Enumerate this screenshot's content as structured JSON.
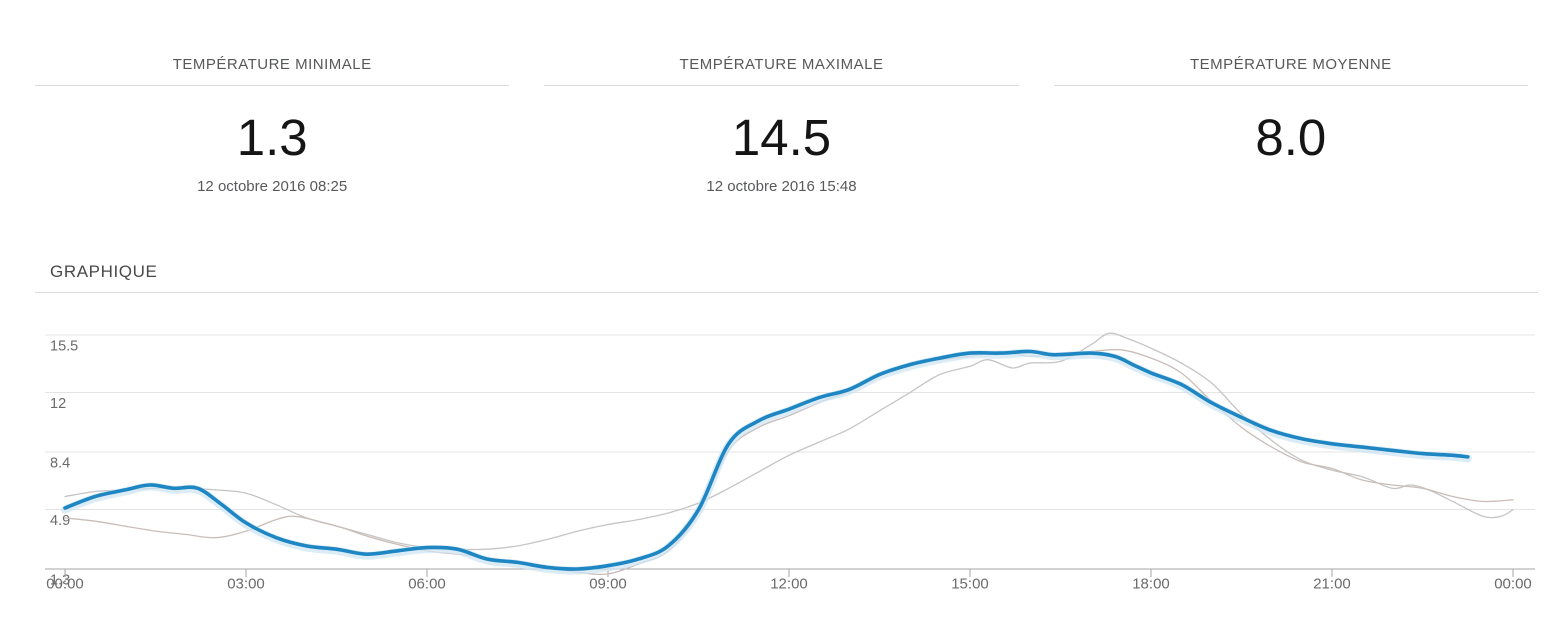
{
  "stats": {
    "cards": [
      {
        "label": "TEMPÉRATURE MINIMALE",
        "value": "1.3",
        "datetime": "12 octobre 2016 08:25"
      },
      {
        "label": "TEMPÉRATURE MAXIMALE",
        "value": "14.5",
        "datetime": "12 octobre 2016 15:48"
      },
      {
        "label": "TEMPÉRATURE MOYENNE",
        "value": "8.0",
        "datetime": ""
      }
    ]
  },
  "section": {
    "title": "GRAPHIQUE"
  },
  "chart_data": {
    "type": "line",
    "title": "GRAPHIQUE",
    "xlabel": "",
    "ylabel": "",
    "xlim_hours": [
      0,
      24
    ],
    "ylim": [
      1.3,
      15.5
    ],
    "grid": true,
    "legend": "none",
    "x_ticks": [
      "00:00",
      "03:00",
      "06:00",
      "09:00",
      "12:00",
      "15:00",
      "18:00",
      "21:00",
      "00:00"
    ],
    "y_ticks": [
      {
        "label": "15.5",
        "value": 15.5
      },
      {
        "label": "12",
        "value": 12
      },
      {
        "label": "8.4",
        "value": 8.4
      },
      {
        "label": "4.9",
        "value": 4.9
      },
      {
        "label": "1.3",
        "value": 1.3
      }
    ],
    "colors": {
      "temperature_line": "#1e86c2",
      "temperature_halo": "#cfe6f3",
      "comparison_line_1": "#c6c4c4",
      "comparison_line_2": "#c9bdb9",
      "gridline": "#e4e4e4",
      "axis": "#a6a6a6",
      "tick_label": "#6b6b6b"
    },
    "series": [
      {
        "name": "comparison-1",
        "role": "comparison",
        "color_key": "comparison_line_1",
        "width": 1.3,
        "points": [
          [
            0,
            5.7
          ],
          [
            0.5,
            6.0
          ],
          [
            1,
            6.1
          ],
          [
            1.5,
            6.2
          ],
          [
            2,
            6.2
          ],
          [
            2.5,
            6.1
          ],
          [
            3,
            5.9
          ],
          [
            3.5,
            5.2
          ],
          [
            4,
            4.4
          ],
          [
            4.5,
            3.9
          ],
          [
            5,
            3.4
          ],
          [
            5.5,
            2.9
          ],
          [
            6,
            2.6
          ],
          [
            6.5,
            2.5
          ],
          [
            7,
            2.5
          ],
          [
            7.5,
            2.7
          ],
          [
            8,
            3.1
          ],
          [
            8.5,
            3.6
          ],
          [
            9,
            4.0
          ],
          [
            9.5,
            4.3
          ],
          [
            10,
            4.7
          ],
          [
            10.5,
            5.3
          ],
          [
            11,
            6.2
          ],
          [
            11.5,
            7.2
          ],
          [
            12,
            8.2
          ],
          [
            12.5,
            9.0
          ],
          [
            13,
            9.8
          ],
          [
            13.5,
            10.9
          ],
          [
            14,
            12.0
          ],
          [
            14.5,
            13.1
          ],
          [
            15,
            13.6
          ],
          [
            15.3,
            14.0
          ],
          [
            15.7,
            13.5
          ],
          [
            16,
            13.8
          ],
          [
            16.5,
            13.9
          ],
          [
            17,
            14.9
          ],
          [
            17.3,
            15.6
          ],
          [
            17.6,
            15.3
          ],
          [
            18,
            14.7
          ],
          [
            18.5,
            13.8
          ],
          [
            19,
            12.6
          ],
          [
            19.5,
            10.7
          ],
          [
            20,
            9.1
          ],
          [
            20.5,
            7.9
          ],
          [
            21,
            7.3
          ],
          [
            21.5,
            6.9
          ],
          [
            22,
            6.2
          ],
          [
            22.3,
            6.4
          ],
          [
            22.6,
            6.1
          ],
          [
            23,
            5.4
          ],
          [
            23.5,
            4.5
          ],
          [
            23.8,
            4.5
          ],
          [
            24,
            4.9
          ]
        ]
      },
      {
        "name": "comparison-2",
        "role": "comparison",
        "color_key": "comparison_line_2",
        "width": 1.3,
        "points": [
          [
            0,
            4.4
          ],
          [
            0.5,
            4.2
          ],
          [
            1,
            3.9
          ],
          [
            1.5,
            3.6
          ],
          [
            2,
            3.4
          ],
          [
            2.5,
            3.2
          ],
          [
            3,
            3.6
          ],
          [
            3.5,
            4.3
          ],
          [
            3.8,
            4.5
          ],
          [
            4.2,
            4.2
          ],
          [
            4.6,
            3.8
          ],
          [
            5,
            3.3
          ],
          [
            5.5,
            2.8
          ],
          [
            6,
            2.4
          ],
          [
            6.5,
            2.2
          ],
          [
            7,
            2.0
          ],
          [
            7.5,
            1.7
          ],
          [
            8,
            1.4
          ],
          [
            8.5,
            1.1
          ],
          [
            9,
            1.0
          ],
          [
            9.5,
            1.6
          ],
          [
            10,
            2.4
          ],
          [
            10.5,
            4.7
          ],
          [
            11,
            8.5
          ],
          [
            11.5,
            9.9
          ],
          [
            12,
            10.6
          ],
          [
            12.5,
            11.4
          ],
          [
            13,
            12.1
          ],
          [
            13.5,
            13.0
          ],
          [
            14,
            13.8
          ],
          [
            14.5,
            14.0
          ],
          [
            15,
            14.2
          ],
          [
            15.5,
            14.5
          ],
          [
            16,
            14.2
          ],
          [
            16.5,
            14.4
          ],
          [
            17,
            14.5
          ],
          [
            17.5,
            14.6
          ],
          [
            18,
            14.1
          ],
          [
            18.5,
            13.2
          ],
          [
            19,
            11.5
          ],
          [
            19.5,
            9.9
          ],
          [
            20,
            8.7
          ],
          [
            20.5,
            7.8
          ],
          [
            21,
            7.4
          ],
          [
            21.5,
            6.7
          ],
          [
            22,
            6.4
          ],
          [
            22.5,
            6.2
          ],
          [
            23,
            5.7
          ],
          [
            23.5,
            5.4
          ],
          [
            24,
            5.5
          ]
        ]
      },
      {
        "name": "temperature",
        "role": "main",
        "color_key": "temperature_line",
        "halo_key": "temperature_halo",
        "width": 3.6,
        "points": [
          [
            0,
            5.0
          ],
          [
            0.5,
            5.7
          ],
          [
            1,
            6.1
          ],
          [
            1.4,
            6.4
          ],
          [
            1.8,
            6.2
          ],
          [
            2.2,
            6.2
          ],
          [
            2.6,
            5.2
          ],
          [
            3,
            4.1
          ],
          [
            3.5,
            3.2
          ],
          [
            4,
            2.7
          ],
          [
            4.5,
            2.5
          ],
          [
            5,
            2.2
          ],
          [
            5.5,
            2.4
          ],
          [
            6,
            2.6
          ],
          [
            6.5,
            2.5
          ],
          [
            7,
            1.9
          ],
          [
            7.5,
            1.7
          ],
          [
            8,
            1.4
          ],
          [
            8.5,
            1.3
          ],
          [
            9,
            1.5
          ],
          [
            9.5,
            1.9
          ],
          [
            10,
            2.7
          ],
          [
            10.5,
            4.9
          ],
          [
            11,
            8.9
          ],
          [
            11.5,
            10.3
          ],
          [
            12,
            11.0
          ],
          [
            12.5,
            11.7
          ],
          [
            13,
            12.2
          ],
          [
            13.5,
            13.1
          ],
          [
            14,
            13.7
          ],
          [
            14.5,
            14.1
          ],
          [
            15,
            14.4
          ],
          [
            15.5,
            14.4
          ],
          [
            16,
            14.5
          ],
          [
            16.4,
            14.3
          ],
          [
            17,
            14.4
          ],
          [
            17.4,
            14.2
          ],
          [
            17.7,
            13.7
          ],
          [
            18,
            13.2
          ],
          [
            18.5,
            12.5
          ],
          [
            19,
            11.4
          ],
          [
            19.5,
            10.5
          ],
          [
            20,
            9.7
          ],
          [
            20.5,
            9.2
          ],
          [
            21,
            8.9
          ],
          [
            21.5,
            8.7
          ],
          [
            22,
            8.5
          ],
          [
            22.5,
            8.3
          ],
          [
            23,
            8.2
          ],
          [
            23.25,
            8.1
          ]
        ]
      }
    ]
  }
}
